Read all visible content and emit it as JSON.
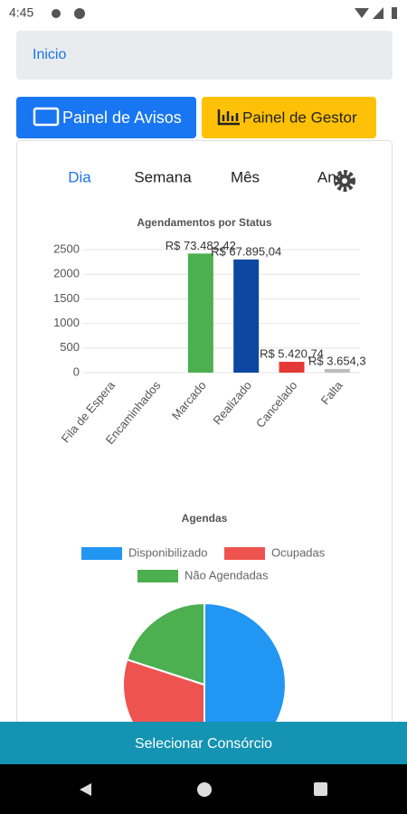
{
  "status_bar": {
    "time": "4:45"
  },
  "header": {
    "title": "Inicio"
  },
  "buttons": [
    {
      "label": "Painel de Avisos"
    },
    {
      "label": "Painel de Gestor"
    }
  ],
  "tabs": [
    "Dia",
    "Semana",
    "Mês",
    "Ano"
  ],
  "chart_data": [
    {
      "type": "bar",
      "title": "Agendamentos por Status",
      "categories": [
        "Fila de Espera",
        "Encaminhados",
        "Marcado",
        "Realizado",
        "Cancelado",
        "Falta"
      ],
      "values": [
        0,
        0,
        2420,
        2300,
        220,
        75
      ],
      "annotations": [
        null,
        null,
        "R$ 73.482,42",
        "R$ 67.895,04",
        "R$ 5.420,74",
        "R$ 3.654,3"
      ],
      "colors": [
        "#4caf50",
        "#4caf50",
        "#4caf50",
        "#0d47a1",
        "#e53935",
        "#bdbdbd"
      ],
      "ylim": [
        0,
        2500
      ],
      "yticks": [
        0,
        500,
        1000,
        1500,
        2000,
        2500
      ],
      "grid": true
    },
    {
      "type": "pie",
      "title": "Agendas",
      "categories": [
        "Disponibilizado",
        "Ocupadas",
        "Não Agendadas"
      ],
      "values": [
        50,
        30,
        20
      ],
      "colors": [
        "#2196f3",
        "#ef5350",
        "#4caf50"
      ]
    }
  ],
  "footer": {
    "label": "Selecionar Consórcio"
  }
}
